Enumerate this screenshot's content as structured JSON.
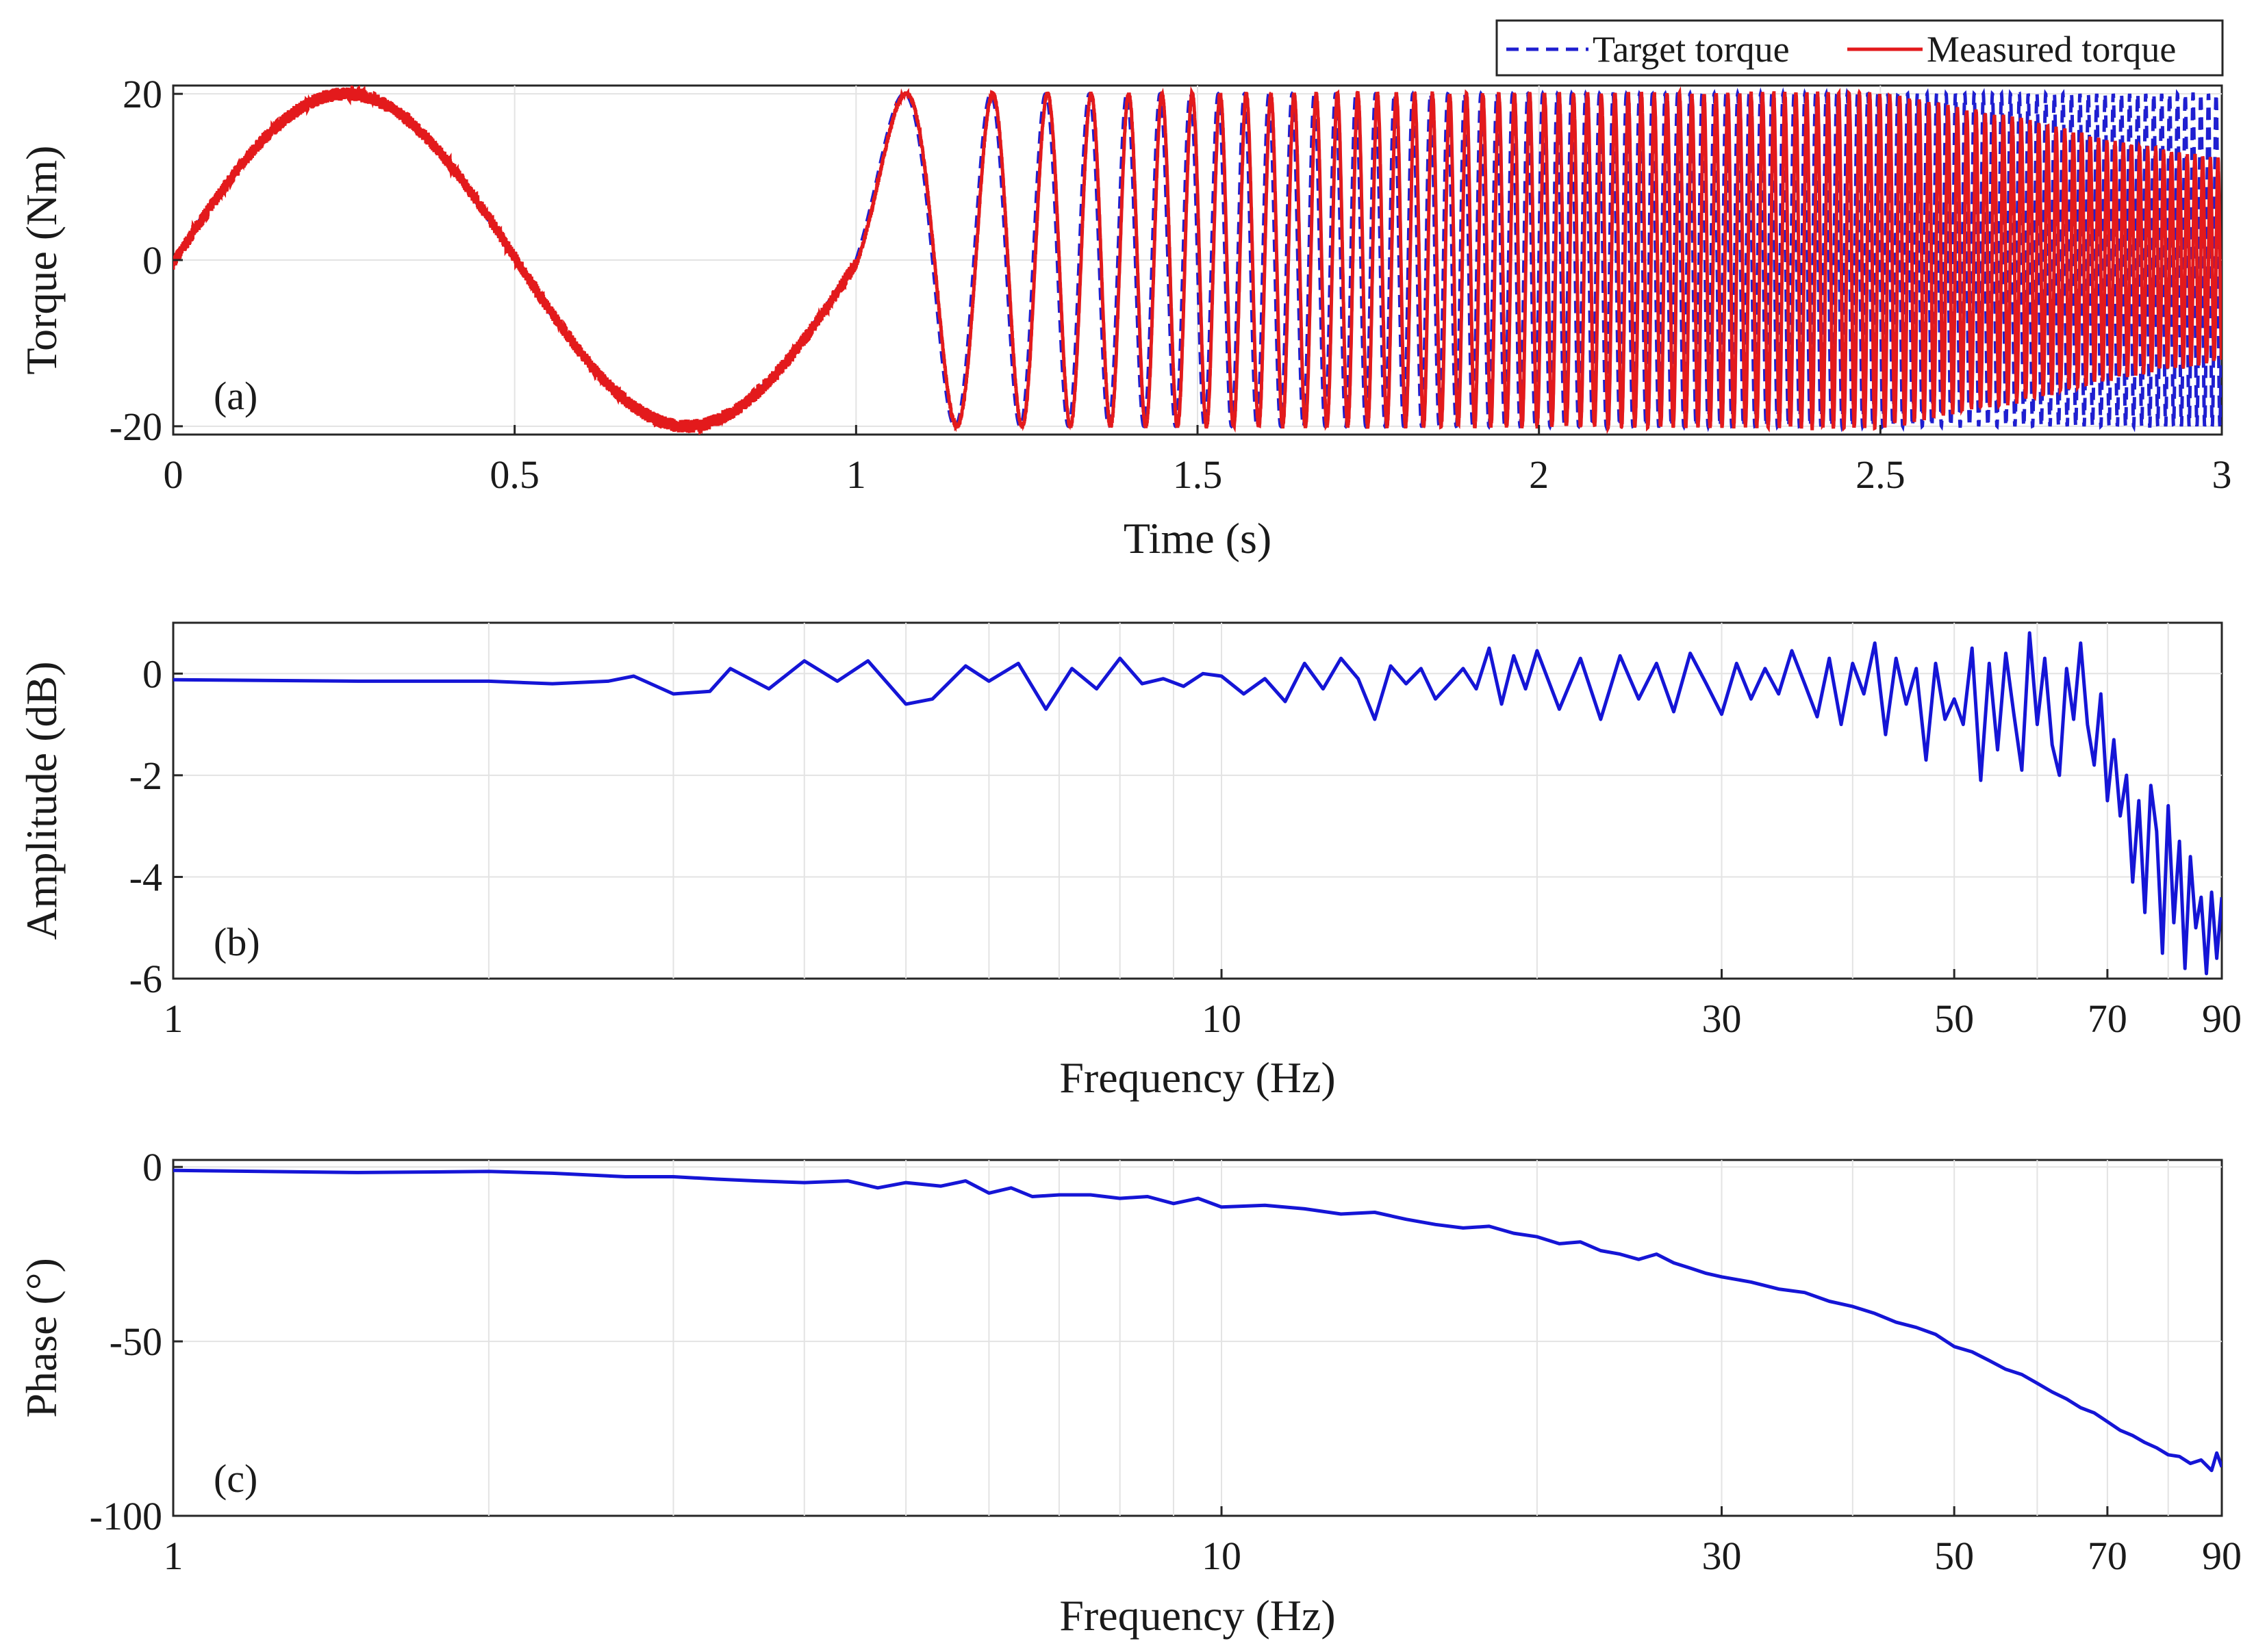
{
  "chart_data": [
    {
      "panel": "(a)",
      "type": "line",
      "xlabel": "Time (s)",
      "ylabel": "Torque (Nm)",
      "xlim": [
        0,
        3
      ],
      "ylim": [
        -21,
        21
      ],
      "x_ticks": [
        0,
        0.5,
        1,
        1.5,
        2,
        2.5,
        3
      ],
      "x_tick_labels": [
        "0",
        "0.5",
        "1",
        "1.5",
        "2",
        "2.5",
        "3"
      ],
      "y_ticks": [
        -20,
        0,
        20
      ],
      "y_tick_labels": [
        "-20",
        "0",
        "20"
      ],
      "grid": true,
      "legend_position": "top-right, above axes",
      "series": [
        {
          "name": "Target torque",
          "style": "dashed",
          "color": "#1f1fd0",
          "signal": "chirp",
          "amplitude": 20,
          "segments": [
            {
              "t_start": 0,
              "t_end": 1,
              "frequency_hz": 1
            },
            {
              "t_start": 1,
              "t_end": 3,
              "frequency_start_hz": 2,
              "frequency_end_hz": 90
            }
          ]
        },
        {
          "name": "Measured torque",
          "style": "solid",
          "color": "#e31a1c",
          "tracks_target": true,
          "amplitude_profile": [
            [
              0,
              20
            ],
            [
              2.5,
              20
            ],
            [
              2.7,
              17
            ],
            [
              2.85,
              14
            ],
            [
              3,
              12
            ]
          ],
          "phase_lag_note": "lag grows with frequency, about 90 deg at 90 Hz"
        }
      ]
    },
    {
      "panel": "(b)",
      "type": "line",
      "xlabel": "Frequency (Hz)",
      "ylabel": "Amplitude (dB)",
      "xscale": "log",
      "xlim": [
        1,
        90
      ],
      "ylim": [
        -6,
        1
      ],
      "x_ticks": [
        1,
        10,
        30,
        50,
        70,
        90
      ],
      "x_tick_labels": [
        "1",
        "10",
        "30",
        "50",
        "70",
        "90"
      ],
      "y_ticks": [
        -6,
        -4,
        -2,
        0
      ],
      "y_tick_labels": [
        "-6",
        "-4",
        "-2",
        "0"
      ],
      "grid": true,
      "series": [
        {
          "name": "Amplitude",
          "color": "#1515d6",
          "x": [
            1,
            1.5,
            2,
            2.3,
            2.6,
            2.75,
            3,
            3.25,
            3.4,
            3.7,
            4,
            4.3,
            4.6,
            5,
            5.3,
            5.7,
            6,
            6.4,
            6.8,
            7.2,
            7.6,
            8,
            8.4,
            8.8,
            9.2,
            9.6,
            10,
            10.5,
            11,
            11.5,
            12,
            12.5,
            13,
            13.5,
            14,
            14.5,
            15,
            15.5,
            16,
            16.5,
            17,
            17.5,
            18,
            18.5,
            19,
            19.5,
            20,
            21,
            22,
            23,
            24,
            25,
            26,
            27,
            28,
            29,
            30,
            31,
            32,
            33,
            34,
            35,
            36,
            37,
            38,
            39,
            40,
            41,
            42,
            43,
            44,
            45,
            46,
            47,
            48,
            49,
            50,
            51,
            52,
            53,
            54,
            55,
            56,
            57,
            58,
            59,
            60,
            61,
            62,
            63,
            64,
            65,
            66,
            67,
            68,
            69,
            70,
            71,
            72,
            73,
            74,
            75,
            76,
            77,
            78,
            79,
            80,
            81,
            82,
            83,
            84,
            85,
            86,
            87,
            88,
            89,
            90
          ],
          "y": [
            -0.12,
            -0.15,
            -0.15,
            -0.2,
            -0.15,
            -0.05,
            -0.4,
            -0.35,
            0.1,
            -0.3,
            0.25,
            -0.15,
            0.25,
            -0.6,
            -0.5,
            0.15,
            -0.15,
            0.2,
            -0.7,
            0.1,
            -0.3,
            0.3,
            -0.2,
            -0.1,
            -0.25,
            0.0,
            -0.05,
            -0.4,
            -0.1,
            -0.55,
            0.2,
            -0.3,
            0.3,
            -0.1,
            -0.9,
            0.15,
            -0.2,
            0.1,
            -0.5,
            -0.2,
            0.1,
            -0.3,
            0.5,
            -0.6,
            0.35,
            -0.3,
            0.45,
            -0.7,
            0.3,
            -0.9,
            0.35,
            -0.5,
            0.2,
            -0.75,
            0.4,
            -0.2,
            -0.8,
            0.2,
            -0.5,
            0.1,
            -0.4,
            0.45,
            -0.2,
            -0.85,
            0.3,
            -1.0,
            0.2,
            -0.4,
            0.6,
            -1.2,
            0.3,
            -0.6,
            0.1,
            -1.7,
            0.2,
            -0.9,
            -0.5,
            -1.0,
            0.5,
            -2.1,
            0.2,
            -1.5,
            0.4,
            -0.8,
            -1.9,
            0.8,
            -1.0,
            0.3,
            -1.4,
            -2.0,
            0.1,
            -0.9,
            0.6,
            -1.0,
            -1.8,
            -0.4,
            -2.5,
            -1.3,
            -2.8,
            -2.0,
            -4.1,
            -2.5,
            -4.7,
            -2.2,
            -3.1,
            -5.5,
            -2.6,
            -4.9,
            -3.3,
            -5.8,
            -3.6,
            -5.0,
            -4.4,
            -5.9,
            -4.3,
            -5.6,
            -4.4
          ]
        }
      ]
    },
    {
      "panel": "(c)",
      "type": "line",
      "xlabel": "Frequency (Hz)",
      "ylabel": "Phase (°)",
      "xscale": "log",
      "xlim": [
        1,
        90
      ],
      "ylim": [
        -100,
        2
      ],
      "x_ticks": [
        1,
        10,
        30,
        50,
        70,
        90
      ],
      "x_tick_labels": [
        "1",
        "10",
        "30",
        "50",
        "70",
        "90"
      ],
      "y_ticks": [
        -100,
        -50,
        0
      ],
      "y_tick_labels": [
        "-100",
        "-50",
        "0"
      ],
      "grid": true,
      "series": [
        {
          "name": "Phase",
          "color": "#1515d6",
          "x": [
            1,
            1.5,
            2,
            2.3,
            2.7,
            3,
            3.3,
            3.6,
            4,
            4.4,
            4.7,
            5,
            5.4,
            5.7,
            6,
            6.3,
            6.6,
            7,
            7.5,
            8,
            8.5,
            9,
            9.5,
            10,
            11,
            12,
            13,
            14,
            15,
            16,
            17,
            18,
            19,
            20,
            21,
            22,
            23,
            24,
            25,
            26,
            27,
            28,
            29,
            30,
            32,
            34,
            36,
            38,
            40,
            42,
            44,
            46,
            48,
            50,
            52,
            54,
            56,
            58,
            60,
            62,
            64,
            66,
            68,
            70,
            72,
            74,
            76,
            78,
            80,
            82,
            84,
            86,
            88,
            89,
            90
          ],
          "y": [
            -1.0,
            -1.6,
            -1.3,
            -1.8,
            -2.8,
            -2.8,
            -3.5,
            -4.0,
            -4.5,
            -4.0,
            -6.0,
            -4.5,
            -5.5,
            -4.0,
            -7.5,
            -6.0,
            -8.5,
            -8.0,
            -8.0,
            -9.0,
            -8.5,
            -10.5,
            -9.0,
            -11.5,
            -11.0,
            -12.0,
            -13.5,
            -13.0,
            -15.0,
            -16.5,
            -17.5,
            -17.0,
            -19.0,
            -20.0,
            -22.0,
            -21.5,
            -24.0,
            -25.0,
            -26.5,
            -25.0,
            -27.5,
            -29.0,
            -30.5,
            -31.5,
            -33.0,
            -35.0,
            -36.0,
            -38.5,
            -40.0,
            -42.0,
            -44.5,
            -46.0,
            -48.0,
            -51.5,
            -53.0,
            -55.5,
            -58.0,
            -59.5,
            -62.0,
            -64.5,
            -66.5,
            -69.0,
            -70.5,
            -73.0,
            -75.5,
            -77.0,
            -79.0,
            -80.5,
            -82.5,
            -83.0,
            -85.0,
            -84.0,
            -87.0,
            -82.0,
            -86.0
          ]
        }
      ]
    }
  ]
}
